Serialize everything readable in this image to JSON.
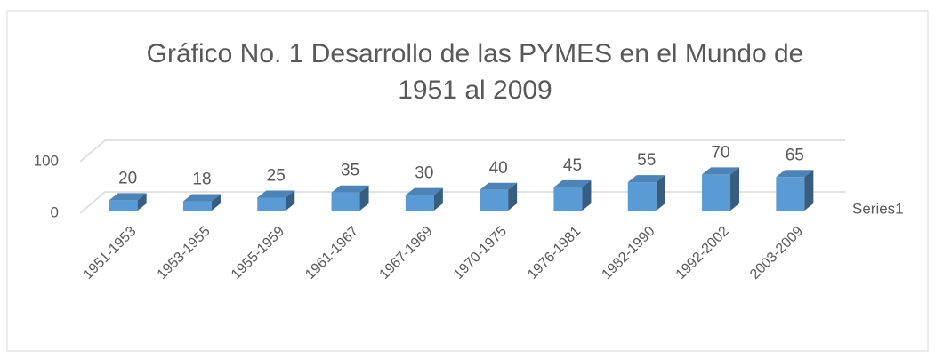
{
  "chart_data": {
    "type": "bar",
    "title": [
      "Gráfico No. 1 Desarrollo de las PYMES en el Mundo de",
      "1951 al 2009"
    ],
    "categories": [
      "1951-1953",
      "1953-1955",
      "1955-1959",
      "1961-1967",
      "1967-1969",
      "1970-1975",
      "1976-1981",
      "1982-1990",
      "1992-2002",
      "2003-2009"
    ],
    "series": [
      {
        "name": "Series1",
        "color": "#5b9bd5",
        "values": [
          20,
          18,
          25,
          35,
          30,
          40,
          45,
          55,
          70,
          65
        ]
      }
    ],
    "ylim": [
      0,
      100
    ],
    "yticks": [
      0,
      100
    ],
    "grid": true,
    "legend": "right"
  }
}
